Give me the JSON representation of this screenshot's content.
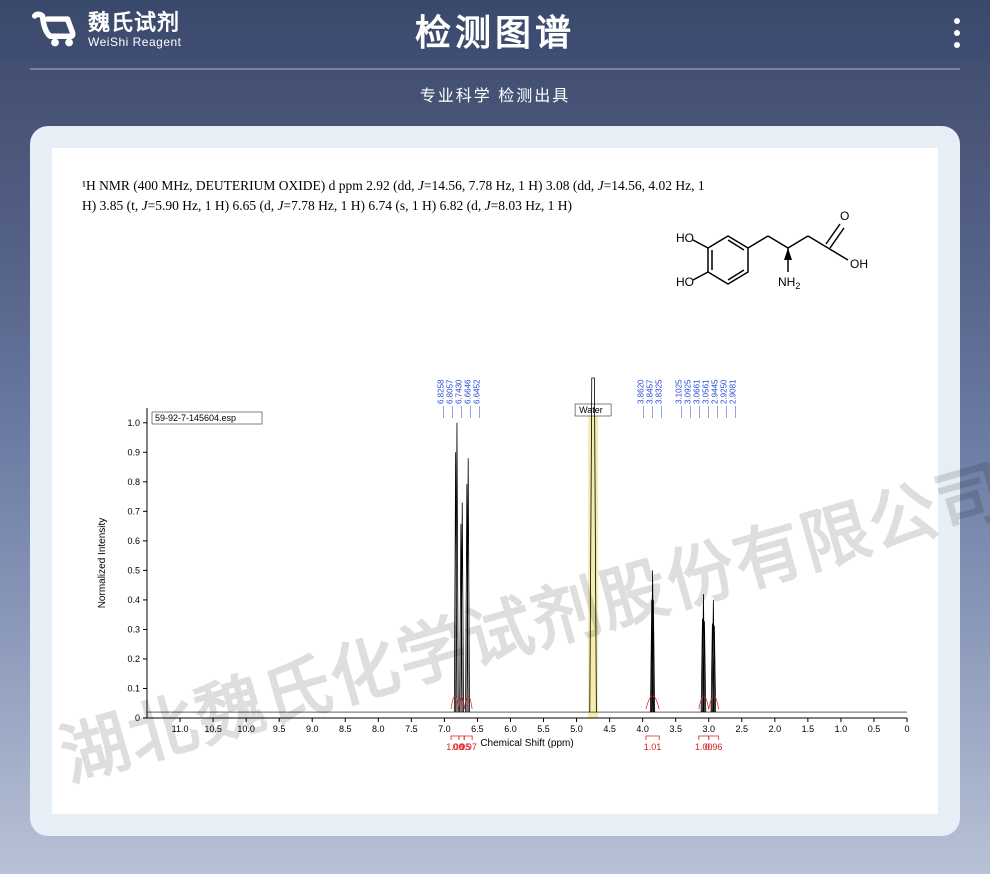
{
  "header": {
    "logo_cn": "魏氏试剂",
    "logo_en": "WeiShi Reagent",
    "title": "检测图谱",
    "subtitle": "专业科学 检测出具"
  },
  "nmr_caption": {
    "prefix": "¹H NMR (400 MHz, DEUTERIUM OXIDE) d ppm 2.92 (dd, ",
    "j1": "J",
    "mid1": "=14.56, 7.78 Hz, 1 H) 3.08 (dd, ",
    "j2": "J",
    "mid2": "=14.56, 4.02 Hz, 1 H) 3.85 (t, ",
    "j3": "J",
    "mid3": "=5.90 Hz, 1 H) 6.65 (d, ",
    "j4": "J",
    "mid4": "=7.78 Hz, 1 H) 6.74 (s, 1 H) 6.82 (d, ",
    "j5": "J",
    "mid5": "=8.03 Hz, 1 H)"
  },
  "watermark": "湖北魏氏化学试剂股份有限公司",
  "spectrum": {
    "file_label": "59-92-7-145604.esp",
    "x_title": "Chemical Shift (ppm)",
    "y_title": "Normalized Intensity",
    "x_ticks": [
      "11.0",
      "10.5",
      "10.0",
      "9.5",
      "9.0",
      "8.5",
      "8.0",
      "7.5",
      "7.0",
      "6.5",
      "6.0",
      "5.5",
      "5.0",
      "4.5",
      "4.0",
      "3.5",
      "3.0",
      "2.5",
      "2.0",
      "1.5",
      "1.0",
      "0.5",
      "0"
    ],
    "y_ticks": [
      "0",
      "0.1",
      "0.2",
      "0.3",
      "0.4",
      "0.5",
      "0.6",
      "0.7",
      "0.8",
      "0.9",
      "1.0"
    ],
    "x_min": 0,
    "x_max": 11.5,
    "y_min": 0,
    "y_max": 1.05,
    "water_label": "Water",
    "water_x": 4.75,
    "water_band_color": "#eee07a",
    "grid_color": "#000000",
    "baseline_y": 0.02,
    "peaks_aromatic": {
      "labels": [
        "6.8258",
        "6.8057",
        "6.7430",
        "6.6646",
        "6.6452"
      ],
      "groups": [
        {
          "x": 6.82,
          "h": 1.0
        },
        {
          "x": 6.74,
          "h": 0.73
        },
        {
          "x": 6.65,
          "h": 0.88
        }
      ],
      "integrals": [
        "1.00",
        "0.95",
        "0.97"
      ]
    },
    "peak_ch": {
      "labels": [
        "3.8620",
        "3.8457",
        "3.8325"
      ],
      "x": 3.85,
      "h": 0.5,
      "integral": "1.01"
    },
    "peak_ch2": {
      "labels": [
        "3.1025",
        "3.0925",
        "3.0661",
        "3.0561",
        "2.9445",
        "2.9250",
        "2.9081"
      ],
      "groups": [
        {
          "x": 3.08,
          "h": 0.42
        },
        {
          "x": 2.93,
          "h": 0.4
        }
      ],
      "integrals": [
        "1.00",
        "0.96"
      ]
    },
    "colors": {
      "peak_stroke": "#000000",
      "integral_stroke": "#d62020",
      "peak_label": "#2a4bd7"
    }
  },
  "structure": {
    "labels": {
      "ho1": "HO",
      "ho2": "HO",
      "o": "O",
      "oh": "OH",
      "nh2": "NH",
      "nh2_sub": "2"
    }
  }
}
